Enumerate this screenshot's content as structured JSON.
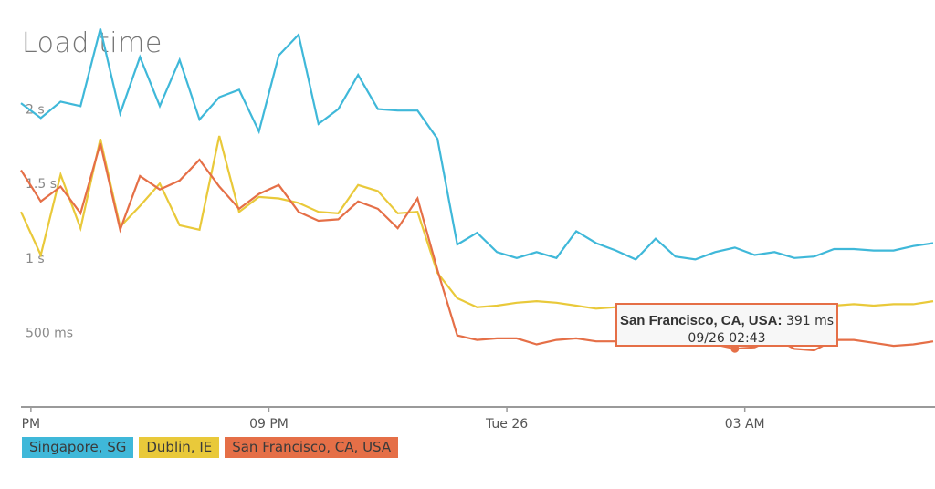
{
  "chart_data": {
    "type": "line",
    "title": "Load time",
    "xlabel": "",
    "ylabel": "",
    "y_unit": "ms",
    "ylim": [
      0,
      2500
    ],
    "y_ticks": [
      {
        "value": 500,
        "label": "500 ms"
      },
      {
        "value": 1000,
        "label": "1 s"
      },
      {
        "value": 1500,
        "label": "1.5 s"
      },
      {
        "value": 2000,
        "label": "2 s"
      }
    ],
    "x_ticks": [
      {
        "index": 0.5,
        "label": "PM"
      },
      {
        "index": 12.5,
        "label": "09 PM"
      },
      {
        "index": 24.5,
        "label": "Tue 26"
      },
      {
        "index": 36.5,
        "label": "03 AM"
      }
    ],
    "x_count": 47,
    "grid": false,
    "legend_position": "bottom-left",
    "series": [
      {
        "name": "Singapore, SG",
        "color": "#3fb8d9",
        "values": [
          2040,
          1940,
          2050,
          2020,
          2540,
          1970,
          2350,
          2020,
          2330,
          1930,
          2080,
          2130,
          1850,
          2360,
          2500,
          1900,
          2000,
          2230,
          2000,
          1990,
          1990,
          1800,
          1090,
          1170,
          1040,
          1000,
          1040,
          1000,
          1180,
          1100,
          1050,
          990,
          1130,
          1010,
          990,
          1040,
          1070,
          1020,
          1040,
          1000,
          1010,
          1060,
          1060,
          1050,
          1050,
          1080,
          1100
        ]
      },
      {
        "name": "Dublin, IE",
        "color": "#e9c93a",
        "values": [
          1310,
          1020,
          1560,
          1200,
          1800,
          1210,
          1350,
          1500,
          1220,
          1190,
          1820,
          1310,
          1410,
          1400,
          1370,
          1310,
          1300,
          1490,
          1450,
          1300,
          1310,
          900,
          730,
          670,
          680,
          700,
          710,
          700,
          680,
          660,
          670,
          670,
          670,
          680,
          680,
          690,
          680,
          680,
          690,
          680,
          690,
          680,
          690,
          680,
          690,
          690,
          710
        ]
      },
      {
        "name": "San Francisco, CA, USA",
        "color": "#e56f47",
        "values": [
          1590,
          1380,
          1480,
          1300,
          1770,
          1190,
          1550,
          1460,
          1520,
          1660,
          1480,
          1330,
          1430,
          1490,
          1310,
          1250,
          1260,
          1380,
          1330,
          1200,
          1400,
          920,
          480,
          450,
          460,
          460,
          420,
          450,
          460,
          440,
          440,
          460,
          420,
          440,
          470,
          420,
          391,
          400,
          460,
          390,
          380,
          450,
          450,
          430,
          410,
          420,
          440
        ]
      }
    ],
    "tooltip": {
      "series_label": "San Francisco, CA, USA:",
      "value_label": "391 ms",
      "time_label": "09/26 02:43",
      "point_index": 36
    }
  }
}
